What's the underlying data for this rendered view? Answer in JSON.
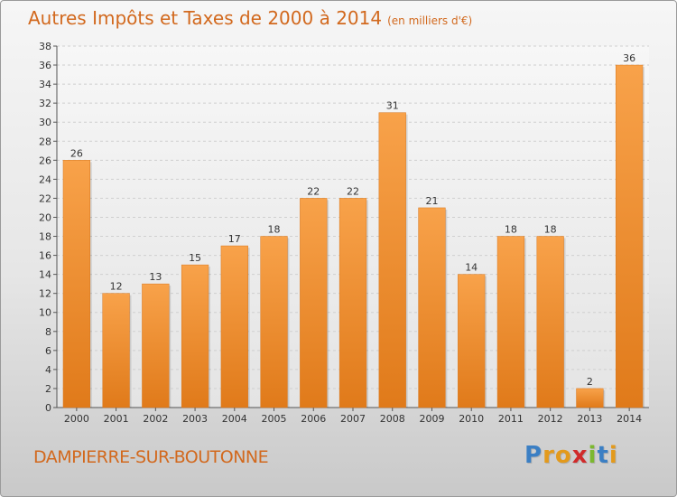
{
  "header": {
    "title": "Autres Impôts et Taxes de 2000 à 2014",
    "subtitle": "(en milliers d'€)"
  },
  "footer": {
    "commune": "DAMPIERRE-SUR-BOUTONNE",
    "logo_letters": [
      "P",
      "r",
      "o",
      "x",
      "i",
      "t",
      "i"
    ],
    "logo_colors": [
      "#3b7fc4",
      "#e39a1c",
      "#e39a1c",
      "#d02a2a",
      "#7cb82f",
      "#3b7fc4",
      "#e39a1c"
    ]
  },
  "chart_data": {
    "type": "bar",
    "categories": [
      "2000",
      "2001",
      "2002",
      "2003",
      "2004",
      "2005",
      "2006",
      "2007",
      "2008",
      "2009",
      "2010",
      "2011",
      "2012",
      "2013",
      "2014"
    ],
    "values": [
      26,
      12,
      13,
      15,
      17,
      18,
      22,
      22,
      31,
      21,
      14,
      18,
      18,
      2,
      36
    ],
    "ylim": [
      0,
      38
    ],
    "yticks": [
      0,
      2,
      4,
      6,
      8,
      10,
      12,
      14,
      16,
      18,
      20,
      22,
      24,
      26,
      28,
      30,
      32,
      34,
      36,
      38
    ],
    "grid": true,
    "bar_color": "#f0922e"
  }
}
